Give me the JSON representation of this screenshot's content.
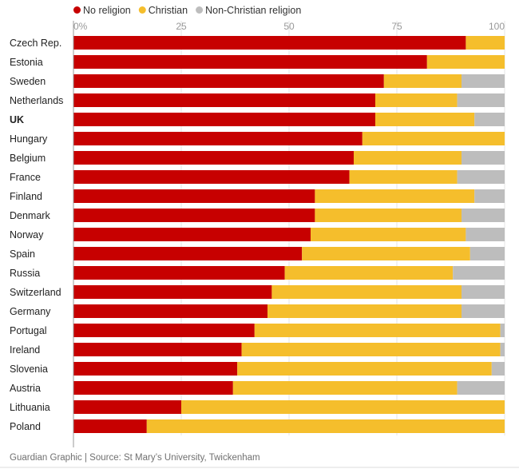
{
  "chart_data": {
    "type": "bar",
    "orientation": "horizontal",
    "stacked": true,
    "title": "",
    "xlabel": "",
    "ylabel": "",
    "xlim": [
      0,
      100
    ],
    "x_ticks": [
      "0%",
      "25",
      "50",
      "75",
      "100"
    ],
    "x_tick_values": [
      0,
      25,
      50,
      75,
      100
    ],
    "grid": true,
    "legend_placement": "top-left",
    "categories": [
      "Czech Rep.",
      "Estonia",
      "Sweden",
      "Netherlands",
      "UK",
      "Hungary",
      "Belgium",
      "France",
      "Finland",
      "Denmark",
      "Norway",
      "Spain",
      "Russia",
      "Switzerland",
      "Germany",
      "Portugal",
      "Ireland",
      "Slovenia",
      "Austria",
      "Lithuania",
      "Poland"
    ],
    "highlighted_category": "UK",
    "series": [
      {
        "name": "No religion",
        "color": "#c70000",
        "values": [
          91,
          82,
          72,
          70,
          70,
          67,
          65,
          64,
          56,
          56,
          55,
          53,
          49,
          46,
          45,
          42,
          39,
          38,
          37,
          25,
          17
        ]
      },
      {
        "name": "Christian",
        "color": "#f5be2c",
        "values": [
          9,
          18,
          18,
          19,
          23,
          33,
          25,
          25,
          37,
          34,
          36,
          39,
          39,
          44,
          45,
          57,
          60,
          59,
          52,
          75,
          83
        ]
      },
      {
        "name": "Non-Christian religion",
        "color": "#bdbdbd",
        "values": [
          0,
          0,
          10,
          11,
          7,
          0,
          10,
          11,
          7,
          10,
          9,
          8,
          12,
          10,
          10,
          1,
          1,
          3,
          11,
          0,
          0
        ]
      }
    ],
    "source": "Guardian Graphic | Source: St Mary’s University, Twickenham"
  }
}
